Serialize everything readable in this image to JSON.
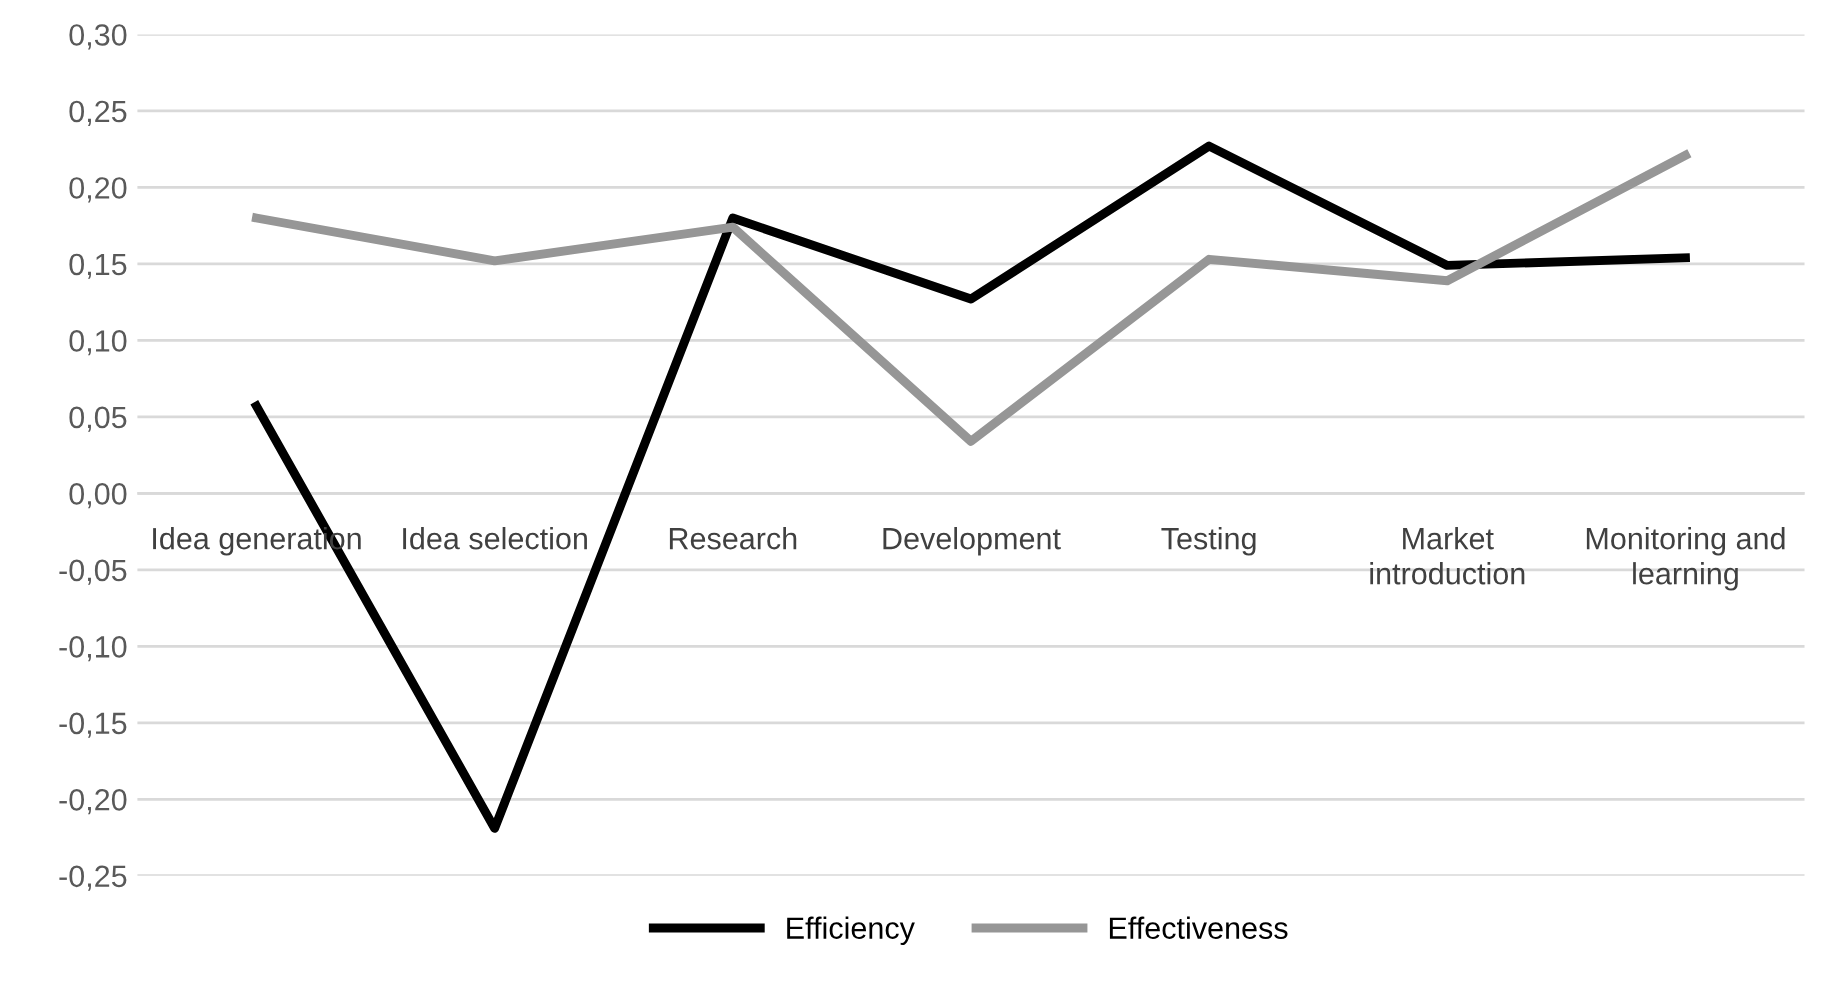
{
  "chart_data": {
    "type": "line",
    "categories": [
      "Idea generation",
      "Idea selection",
      "Research",
      "Development",
      "Testing",
      "Market\nintroduction",
      "Monitoring and\nlearning"
    ],
    "series": [
      {
        "name": "Efficiency",
        "color": "#000000",
        "values": [
          0.057,
          -0.219,
          0.18,
          0.127,
          0.227,
          0.149,
          0.154
        ]
      },
      {
        "name": "Effectiveness",
        "color": "#969696",
        "values": [
          0.18,
          0.152,
          0.174,
          0.034,
          0.153,
          0.139,
          0.221
        ]
      }
    ],
    "ylim": [
      -0.25,
      0.3
    ],
    "yticks": [
      {
        "value": -0.25,
        "label": "-0,25"
      },
      {
        "value": -0.2,
        "label": "-0,20"
      },
      {
        "value": -0.15,
        "label": "-0,15"
      },
      {
        "value": -0.1,
        "label": "-0,10"
      },
      {
        "value": -0.05,
        "label": "-0,05"
      },
      {
        "value": 0,
        "label": "0,00"
      },
      {
        "value": 0.05,
        "label": "0,05"
      },
      {
        "value": 0.1,
        "label": "0,10"
      },
      {
        "value": 0.15,
        "label": "0,15"
      },
      {
        "value": 0.2,
        "label": "0,20"
      },
      {
        "value": 0.25,
        "label": "0,25"
      },
      {
        "value": 0.3,
        "label": "0,30"
      }
    ],
    "grid": "y",
    "legend": "bottom",
    "marker": "none",
    "line_style": "solid"
  }
}
